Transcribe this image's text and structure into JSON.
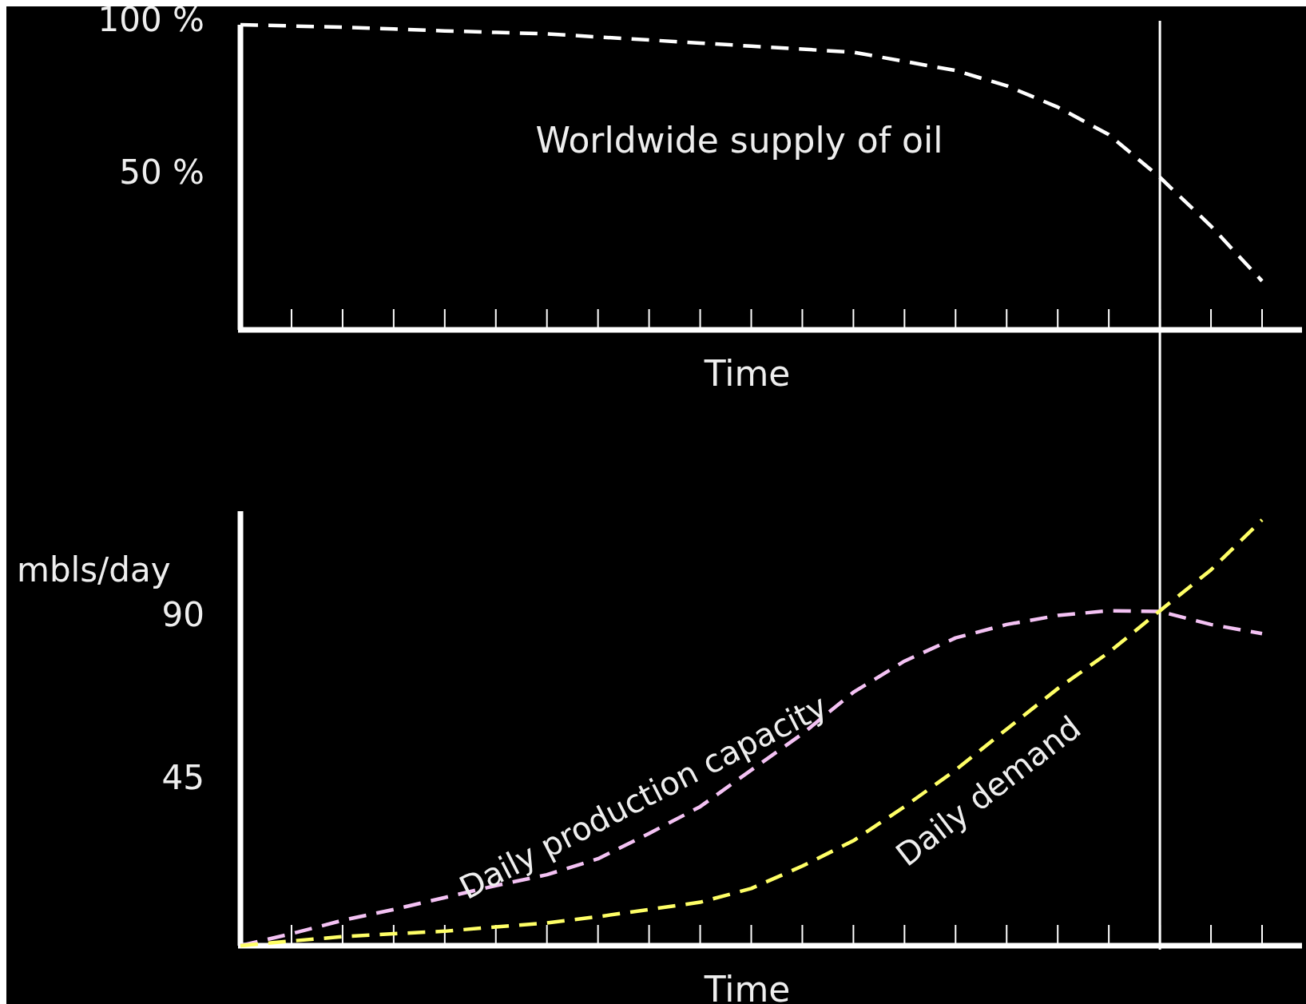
{
  "chart_data": [
    {
      "type": "line",
      "xlabel": "Time",
      "ylim": [
        0,
        100
      ],
      "categories": [
        null,
        null,
        null,
        null,
        null,
        null,
        null,
        null,
        null,
        null,
        null,
        null,
        null,
        null,
        null,
        null,
        null,
        null,
        null,
        null,
        null
      ],
      "yticks": [
        {
          "value": 100,
          "label": "100 %"
        },
        {
          "value": 50,
          "label": "50 %"
        }
      ],
      "tick_labels": "y",
      "line_style": "dashed",
      "series": [
        {
          "name": "Worldwide supply of oil",
          "color": "#ffffff",
          "values": [
            100,
            99.6,
            99.2,
            98.6,
            98,
            97.5,
            97,
            96,
            95,
            94,
            93,
            92,
            91,
            88,
            85,
            80,
            73,
            64,
            50,
            34,
            16
          ]
        }
      ]
    },
    {
      "type": "line",
      "xlabel": "Time",
      "ylabel": "mbls/day",
      "ylim": [
        0,
        120
      ],
      "categories": [
        null,
        null,
        null,
        null,
        null,
        null,
        null,
        null,
        null,
        null,
        null,
        null,
        null,
        null,
        null,
        null,
        null,
        null,
        null,
        null,
        null
      ],
      "yticks": [
        90,
        45
      ],
      "tick_labels": "y",
      "line_style": "dashed",
      "series": [
        {
          "name": "Daily production capacity",
          "color": "#f4c2f4",
          "values": [
            0,
            3.3,
            7,
            10,
            13.3,
            16.6,
            19.6,
            24,
            31,
            38.4,
            48.5,
            58.5,
            70,
            78.6,
            85,
            88.7,
            91.2,
            92.5,
            92.3,
            88.7,
            86.2
          ]
        },
        {
          "name": "Daily demand",
          "color": "#ffff66",
          "values": [
            0,
            1.3,
            2.5,
            3.3,
            4,
            5.2,
            6.3,
            8,
            10,
            12,
            15.8,
            22,
            29,
            38.4,
            48.5,
            59.8,
            71,
            81,
            92.5,
            103.8,
            117.6
          ]
        }
      ]
    }
  ]
}
